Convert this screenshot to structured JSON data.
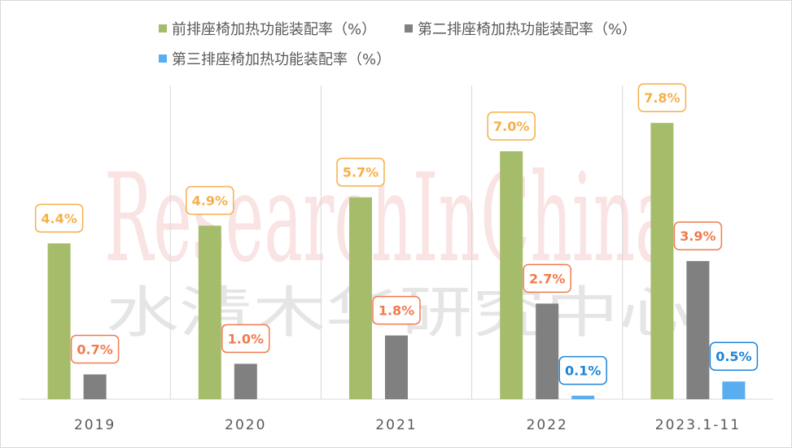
{
  "chart_data": {
    "type": "bar",
    "categories": [
      "2019",
      "2020",
      "2021",
      "2022",
      "2023.1-11"
    ],
    "series": [
      {
        "name": "前排座椅加热功能装配率（%）",
        "values": [
          4.4,
          4.9,
          5.7,
          7.0,
          7.8
        ],
        "labels": [
          "4.4%",
          "4.9%",
          "5.7%",
          "7.0%",
          "7.8%"
        ],
        "color": "#a5bd6a",
        "label_color": "#f5b04a"
      },
      {
        "name": "第二排座椅加热功能装配率（%）",
        "values": [
          0.7,
          1.0,
          1.8,
          2.7,
          3.9
        ],
        "labels": [
          "0.7%",
          "1.0%",
          "1.8%",
          "2.7%",
          "3.9%"
        ],
        "color": "#808080",
        "label_color": "#f07b4f"
      },
      {
        "name": "第三排座椅加热功能装配率（%）",
        "values": [
          0,
          0,
          0,
          0.1,
          0.5
        ],
        "labels": [
          "",
          "",
          "",
          "0.1%",
          "0.5%"
        ],
        "color": "#5aaef0",
        "label_color": "#1f84d8"
      }
    ],
    "ylim": [
      0,
      8.7
    ],
    "legend_position": "top",
    "grid": false,
    "watermark": [
      "ResearchInChina",
      "水清木华研究中心"
    ]
  }
}
